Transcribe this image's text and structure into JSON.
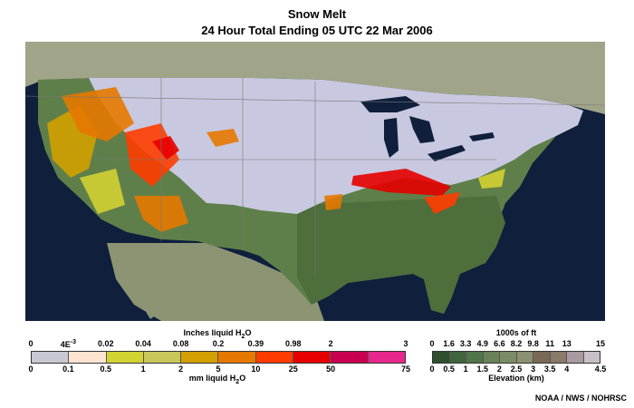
{
  "header": {
    "title": "Snow Melt",
    "subtitle": "24 Hour Total Ending  05 UTC  22 Mar 2006"
  },
  "melt_legend": {
    "top_title": "Inches liquid H",
    "top_title_sub": "2",
    "top_title_end": "O",
    "inch_labels": [
      "0",
      "4E",
      "0.02",
      "0.04",
      "0.08",
      "0.2",
      "0.39",
      "0.98",
      "2",
      "3"
    ],
    "inch_exponent": "-3",
    "mm_labels": [
      "0",
      "0.1",
      "0.5",
      "1",
      "2",
      "5",
      "10",
      "25",
      "50",
      "75"
    ],
    "bottom_title": "mm liquid H",
    "bottom_title_sub": "2",
    "bottom_title_end": "O",
    "colors": [
      "#c8c8d2",
      "#ffe4d2",
      "#d2d232",
      "#c8c85a",
      "#d2a000",
      "#e67800",
      "#ff3c00",
      "#e60000",
      "#c80050",
      "#e6288c"
    ]
  },
  "elevation_legend": {
    "top_title": "1000s of ft",
    "ft_labels": [
      "0",
      "1.6",
      "3.3",
      "4.9",
      "6.6",
      "8.2",
      "9.8",
      "11",
      "13",
      "15"
    ],
    "km_labels": [
      "0",
      "0.5",
      "1",
      "1.5",
      "2",
      "2.5",
      "3",
      "3.5",
      "4",
      "4.5"
    ],
    "bottom_title": "Elevation (km)",
    "colors": [
      "#2e5030",
      "#40653c",
      "#52744a",
      "#6a8258",
      "#7a8c66",
      "#8a9070",
      "#7a6a55",
      "#8a7a6a",
      "#a89aa0",
      "#c8c0c8"
    ]
  },
  "credit": "NOAA / NWS / NOHRSC"
}
